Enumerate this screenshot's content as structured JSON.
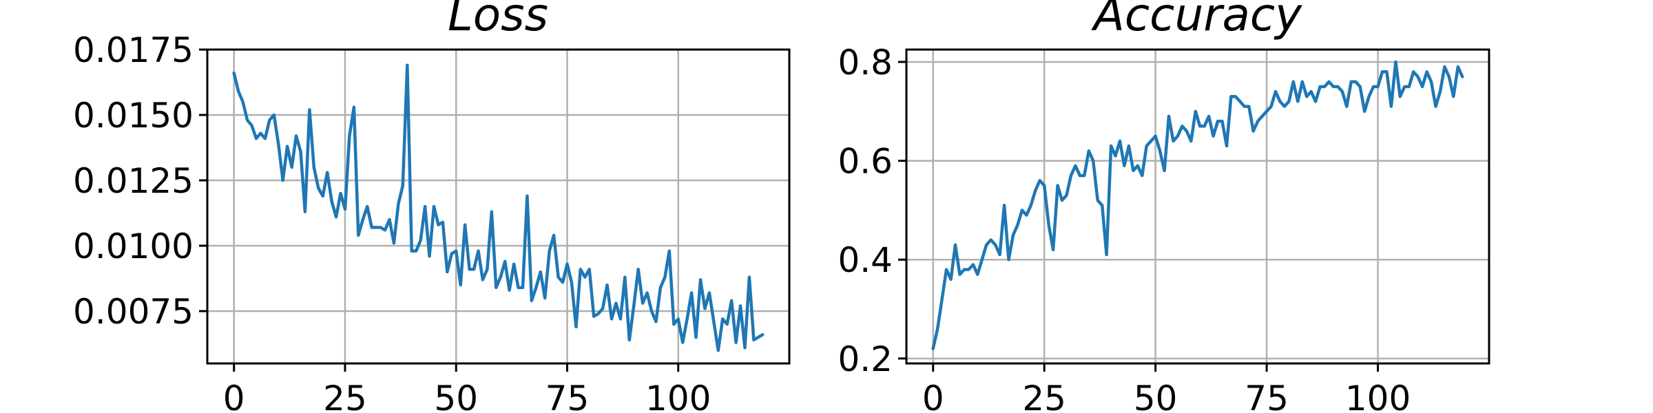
{
  "colors": {
    "series": "#1f77b4",
    "grid": "#b0b0b0"
  },
  "chart_data": [
    {
      "type": "line",
      "title": "Loss",
      "xlabel": "",
      "ylabel": "",
      "grid": true,
      "xlim": [
        -6,
        125
      ],
      "ylim": [
        0.0055,
        0.0175
      ],
      "x_ticks": [
        0,
        25,
        50,
        75,
        100
      ],
      "x_tick_labels": [
        "0",
        "25",
        "50",
        "75",
        "100"
      ],
      "y_ticks": [
        0.0075,
        0.01,
        0.0125,
        0.015,
        0.0175
      ],
      "y_tick_labels": [
        "0.0075",
        "0.0100",
        "0.0125",
        "0.0150",
        "0.0175"
      ],
      "series": [
        {
          "x": [
            0,
            1,
            2,
            3,
            4,
            5,
            6,
            7,
            8,
            9,
            10,
            11,
            12,
            13,
            14,
            15,
            16,
            17,
            18,
            19,
            20,
            21,
            22,
            23,
            24,
            25,
            26,
            27,
            28,
            29,
            30,
            31,
            32,
            33,
            34,
            35,
            36,
            37,
            38,
            39,
            40,
            41,
            42,
            43,
            44,
            45,
            46,
            47,
            48,
            49,
            50,
            51,
            52,
            53,
            54,
            55,
            56,
            57,
            58,
            59,
            60,
            61,
            62,
            63,
            64,
            65,
            66,
            67,
            68,
            69,
            70,
            71,
            72,
            73,
            74,
            75,
            76,
            77,
            78,
            79,
            80,
            81,
            82,
            83,
            84,
            85,
            86,
            87,
            88,
            89,
            90,
            91,
            92,
            93,
            94,
            95,
            96,
            97,
            98,
            99,
            100,
            101,
            102,
            103,
            104,
            105,
            106,
            107,
            108,
            109,
            110,
            111,
            112,
            113,
            114,
            115,
            116,
            117,
            118,
            119
          ],
          "values": [
            0.0166,
            0.0159,
            0.0155,
            0.0148,
            0.0146,
            0.0141,
            0.0143,
            0.0141,
            0.0148,
            0.015,
            0.0139,
            0.0125,
            0.0138,
            0.013,
            0.0142,
            0.0136,
            0.0113,
            0.0152,
            0.013,
            0.0122,
            0.0119,
            0.0128,
            0.0117,
            0.0111,
            0.012,
            0.0114,
            0.0142,
            0.0153,
            0.0104,
            0.011,
            0.0115,
            0.0107,
            0.0107,
            0.0107,
            0.0106,
            0.011,
            0.0101,
            0.0116,
            0.0123,
            0.0169,
            0.0098,
            0.0098,
            0.0102,
            0.0115,
            0.0096,
            0.0115,
            0.0108,
            0.0109,
            0.009,
            0.0097,
            0.0098,
            0.0085,
            0.0108,
            0.0091,
            0.0091,
            0.0098,
            0.0087,
            0.0091,
            0.0113,
            0.0084,
            0.0088,
            0.0094,
            0.0083,
            0.0093,
            0.0084,
            0.0084,
            0.0119,
            0.0079,
            0.0084,
            0.009,
            0.008,
            0.0098,
            0.0104,
            0.0088,
            0.0086,
            0.0093,
            0.0086,
            0.0069,
            0.0091,
            0.0088,
            0.0091,
            0.0073,
            0.0074,
            0.0076,
            0.0085,
            0.0072,
            0.0078,
            0.0072,
            0.0088,
            0.0064,
            0.0077,
            0.0091,
            0.0078,
            0.0082,
            0.0075,
            0.0071,
            0.0084,
            0.0088,
            0.0098,
            0.007,
            0.0072,
            0.0063,
            0.0072,
            0.0082,
            0.0065,
            0.0087,
            0.0076,
            0.0082,
            0.0071,
            0.006,
            0.0072,
            0.007,
            0.0079,
            0.0063,
            0.0077,
            0.0061,
            0.0088,
            0.0064,
            0.0065,
            0.0066
          ]
        }
      ]
    },
    {
      "type": "line",
      "title": "Accuracy",
      "xlabel": "",
      "ylabel": "",
      "grid": true,
      "xlim": [
        -6,
        125
      ],
      "ylim": [
        0.19,
        0.825
      ],
      "x_ticks": [
        0,
        25,
        50,
        75,
        100
      ],
      "x_tick_labels": [
        "0",
        "25",
        "50",
        "75",
        "100"
      ],
      "y_ticks": [
        0.2,
        0.4,
        0.6,
        0.8
      ],
      "y_tick_labels": [
        "0.2",
        "0.4",
        "0.6",
        "0.8"
      ],
      "series": [
        {
          "x": [
            0,
            1,
            2,
            3,
            4,
            5,
            6,
            7,
            8,
            9,
            10,
            11,
            12,
            13,
            14,
            15,
            16,
            17,
            18,
            19,
            20,
            21,
            22,
            23,
            24,
            25,
            26,
            27,
            28,
            29,
            30,
            31,
            32,
            33,
            34,
            35,
            36,
            37,
            38,
            39,
            40,
            41,
            42,
            43,
            44,
            45,
            46,
            47,
            48,
            49,
            50,
            51,
            52,
            53,
            54,
            55,
            56,
            57,
            58,
            59,
            60,
            61,
            62,
            63,
            64,
            65,
            66,
            67,
            68,
            69,
            70,
            71,
            72,
            73,
            74,
            75,
            76,
            77,
            78,
            79,
            80,
            81,
            82,
            83,
            84,
            85,
            86,
            87,
            88,
            89,
            90,
            91,
            92,
            93,
            94,
            95,
            96,
            97,
            98,
            99,
            100,
            101,
            102,
            103,
            104,
            105,
            106,
            107,
            108,
            109,
            110,
            111,
            112,
            113,
            114,
            115,
            116,
            117,
            118,
            119
          ],
          "values": [
            0.22,
            0.26,
            0.32,
            0.38,
            0.36,
            0.43,
            0.37,
            0.38,
            0.38,
            0.39,
            0.37,
            0.4,
            0.43,
            0.44,
            0.43,
            0.41,
            0.51,
            0.4,
            0.45,
            0.47,
            0.5,
            0.49,
            0.51,
            0.54,
            0.56,
            0.55,
            0.47,
            0.42,
            0.55,
            0.52,
            0.53,
            0.57,
            0.59,
            0.57,
            0.57,
            0.62,
            0.6,
            0.52,
            0.51,
            0.41,
            0.63,
            0.61,
            0.64,
            0.59,
            0.63,
            0.58,
            0.59,
            0.57,
            0.63,
            0.64,
            0.65,
            0.62,
            0.58,
            0.69,
            0.64,
            0.65,
            0.67,
            0.66,
            0.64,
            0.7,
            0.67,
            0.67,
            0.69,
            0.65,
            0.68,
            0.68,
            0.63,
            0.73,
            0.73,
            0.72,
            0.71,
            0.71,
            0.66,
            0.68,
            0.69,
            0.7,
            0.71,
            0.74,
            0.72,
            0.71,
            0.72,
            0.76,
            0.72,
            0.76,
            0.73,
            0.74,
            0.72,
            0.75,
            0.75,
            0.76,
            0.75,
            0.75,
            0.74,
            0.71,
            0.76,
            0.76,
            0.75,
            0.7,
            0.73,
            0.75,
            0.75,
            0.78,
            0.78,
            0.71,
            0.8,
            0.73,
            0.75,
            0.75,
            0.78,
            0.77,
            0.75,
            0.78,
            0.76,
            0.71,
            0.74,
            0.79,
            0.77,
            0.73,
            0.79,
            0.77
          ]
        }
      ]
    }
  ]
}
